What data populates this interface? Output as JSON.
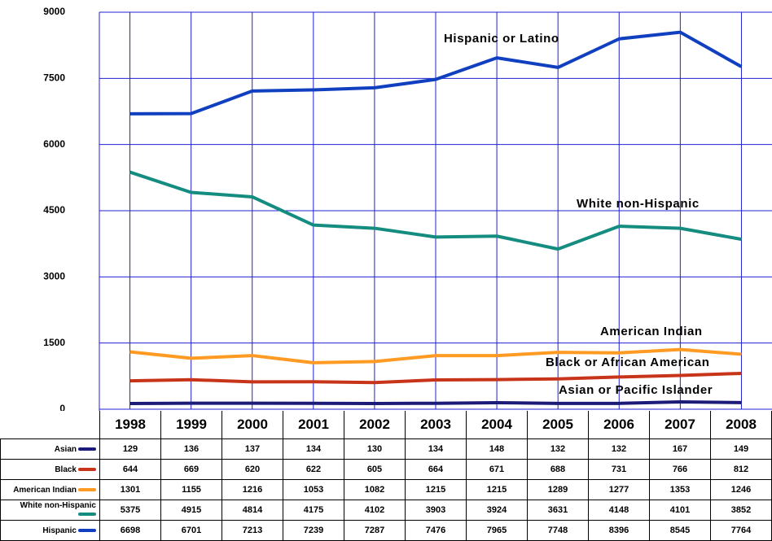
{
  "chart_data": {
    "type": "line",
    "categories": [
      "1998",
      "1999",
      "2000",
      "2001",
      "2002",
      "2003",
      "2004",
      "2005",
      "2006",
      "2007",
      "2008"
    ],
    "series": [
      {
        "name": "Asian",
        "color": "#1c1c78",
        "values": [
          129,
          136,
          137,
          134,
          130,
          134,
          148,
          132,
          132,
          167,
          149
        ]
      },
      {
        "name": "Black",
        "color": "#c8341a",
        "values": [
          644,
          669,
          620,
          622,
          605,
          664,
          671,
          688,
          731,
          766,
          812
        ]
      },
      {
        "name": "American Indian",
        "color": "#ff9a22",
        "values": [
          1301,
          1155,
          1216,
          1053,
          1082,
          1215,
          1215,
          1289,
          1277,
          1353,
          1246
        ]
      },
      {
        "name": "White non-Hispanic",
        "color": "#148c80",
        "values": [
          5375,
          4915,
          4814,
          4175,
          4102,
          3903,
          3924,
          3631,
          4148,
          4101,
          3852
        ]
      },
      {
        "name": "Hispanic",
        "color": "#1040c0",
        "values": [
          6698,
          6701,
          7213,
          7239,
          7287,
          7476,
          7965,
          7748,
          8396,
          8545,
          7764
        ]
      }
    ],
    "annotations": [
      "Hispanic or Latino",
      "White non-Hispanic",
      "American Indian",
      "Black or African American",
      "Asian or Pacific Islander"
    ],
    "ylim": [
      0,
      9000
    ],
    "yticks": [
      0,
      1500,
      3000,
      4500,
      6000,
      7500,
      9000
    ],
    "grid": true
  }
}
